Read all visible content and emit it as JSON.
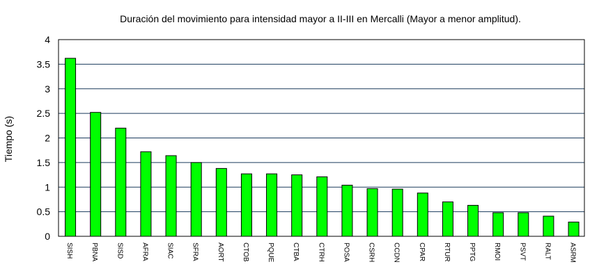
{
  "chart_data": {
    "type": "bar",
    "title": "Duración del movimiento para intensidad mayor a II-III en Mercalli (Mayor a menor amplitud).",
    "xlabel": "",
    "ylabel": "Tiempo (s)",
    "ylim": [
      0,
      4
    ],
    "yticks": [
      "0",
      "0.5",
      "1",
      "1.5",
      "2",
      "2.5",
      "3",
      "3.5",
      "4"
    ],
    "grid": "horizontal",
    "bar_color": "#00ff00",
    "grid_color": "#1a3a5c",
    "categories": [
      "SISH",
      "PBNA",
      "SISD",
      "AFRA",
      "SIAC",
      "SFRA",
      "AORT",
      "CTOB",
      "PQUE",
      "CTBA",
      "CTRH",
      "POSA",
      "CSRH",
      "CCDN",
      "CPAR",
      "RTUR",
      "PPTG",
      "RMOI",
      "PSVT",
      "RALT",
      "ASRM"
    ],
    "values": [
      3.62,
      2.52,
      2.2,
      1.72,
      1.64,
      1.5,
      1.38,
      1.27,
      1.27,
      1.25,
      1.21,
      1.04,
      0.97,
      0.96,
      0.88,
      0.7,
      0.63,
      0.48,
      0.48,
      0.41,
      0.29
    ]
  }
}
